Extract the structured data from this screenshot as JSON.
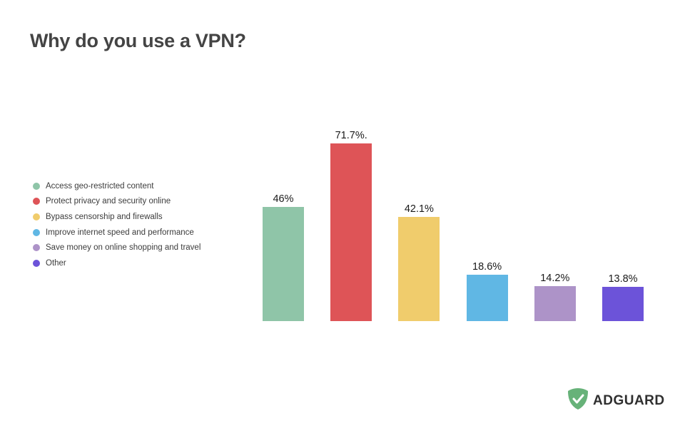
{
  "header": {
    "title": "Why do you use a VPN?"
  },
  "legend": [
    {
      "label": "Access geo-restricted content",
      "color": "#8FC5A8"
    },
    {
      "label": "Protect privacy and security online",
      "color": "#DE5457"
    },
    {
      "label": "Bypass censorship and firewalls",
      "color": "#F0CC6C"
    },
    {
      "label": "Improve internet speed and performance",
      "color": "#60B7E4"
    },
    {
      "label": "Save money on online shopping and travel",
      "color": "#AD93C8"
    },
    {
      "label": "Other",
      "color": "#6C53D9"
    }
  ],
  "bars": [
    {
      "label": "46%",
      "value": 46,
      "color": "#8FC5A8"
    },
    {
      "label": "71.7%.",
      "value": 71.7,
      "color": "#DE5457"
    },
    {
      "label": "42.1%",
      "value": 42.1,
      "color": "#F0CC6C"
    },
    {
      "label": "18.6%",
      "value": 18.6,
      "color": "#60B7E4"
    },
    {
      "label": "14.2%",
      "value": 14.2,
      "color": "#AD93C8"
    },
    {
      "label": "13.8%",
      "value": 13.8,
      "color": "#6C53D9"
    }
  ],
  "logo": {
    "text": "ADGUARD",
    "color": "#67B279"
  },
  "chart_data": {
    "type": "bar",
    "title": "Why do you use a VPN?",
    "categories": [
      "Access geo-restricted content",
      "Protect privacy and security online",
      "Bypass censorship and firewalls",
      "Improve internet speed and performance",
      "Save money on online shopping and travel",
      "Other"
    ],
    "values": [
      46,
      71.7,
      42.1,
      18.6,
      14.2,
      13.8
    ],
    "data_labels": [
      "46%",
      "71.7%.",
      "42.1%",
      "18.6%",
      "14.2%",
      "13.8%"
    ],
    "colors": [
      "#8FC5A8",
      "#DE5457",
      "#F0CC6C",
      "#60B7E4",
      "#AD93C8",
      "#6C53D9"
    ],
    "xlabel": "",
    "ylabel": "",
    "ylim": [
      0,
      80
    ],
    "grid": false,
    "legend_position": "left"
  }
}
